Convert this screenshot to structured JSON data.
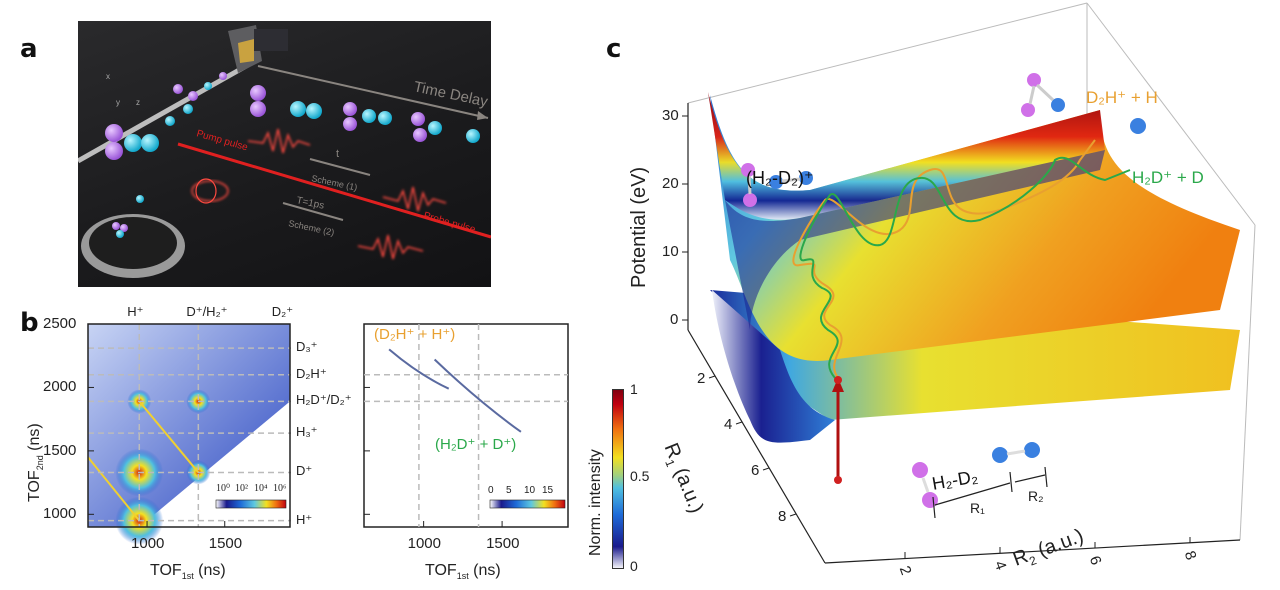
{
  "panels": {
    "a": {
      "letter": "a",
      "labels": {
        "axis_x": "x",
        "axis_y": "y",
        "axis_z": "z",
        "time_delay": "Time Delay",
        "pump_pulse": "Pump pulse",
        "probe_pulse": "Probe pulse",
        "t": "t",
        "scheme1": "Scheme (1)",
        "T": "T=1ps",
        "scheme2": "Scheme (2)"
      },
      "colors": {
        "H": "#b97ae8",
        "D": "#28c6e0",
        "laser": "#e02020",
        "arrow": "#8a8580"
      }
    },
    "b": {
      "letter": "b",
      "chart_data": [
        {
          "type": "heatmap",
          "title": "",
          "xlabel": "TOF1st (ns)",
          "xlabel_main": "TOF",
          "xlabel_sub": "1st",
          "xlabel_unit": " (ns)",
          "ylabel_main": "TOF",
          "ylabel_sub": "2nd",
          "ylabel_unit": " (ns)",
          "xlim": [
            620,
            1920
          ],
          "ylim": [
            900,
            2500
          ],
          "x_ticks": [
            1000,
            1500
          ],
          "y_ticks": [
            1000,
            1500,
            2000,
            2500
          ],
          "top_labels": [
            {
              "text": "H⁺",
              "x": 950
            },
            {
              "text": "D⁺/H₂⁺",
              "x": 1330
            },
            {
              "text": "D₂⁺",
              "x": 1880
            }
          ],
          "right_labels": [
            {
              "text": "D₃⁺",
              "y": 2310
            },
            {
              "text": "D₂H⁺",
              "y": 2100
            },
            {
              "text": "H₂D⁺/D₂⁺",
              "y": 1890
            },
            {
              "text": "H₃⁺",
              "y": 1640
            },
            {
              "text": "D⁺",
              "y": 1330
            },
            {
              "text": "H⁺",
              "y": 950
            }
          ],
          "vertical_dashes": [
            950,
            1330
          ],
          "horizontal_dashes": [
            2310,
            2100,
            1890,
            1640,
            1330,
            950
          ],
          "colorbar": {
            "scale": "log",
            "tick_labels": [
              "10⁰",
              "10²",
              "10⁴",
              "10⁶"
            ]
          }
        },
        {
          "type": "heatmap",
          "xlabel_main": "TOF",
          "xlabel_sub": "1st",
          "xlabel_unit": " (ns)",
          "xlim": [
            620,
            1920
          ],
          "ylim": [
            900,
            2500
          ],
          "x_ticks": [
            1000,
            1500
          ],
          "vertical_dashes": [
            970,
            1350
          ],
          "horizontal_dashes": [
            2100,
            1890
          ],
          "annotations": [
            {
              "text": "(D₂H⁺ + H⁺)",
              "color": "#e8a030"
            },
            {
              "text": "(H₂D⁺ + D⁺)",
              "color": "#2aa84a"
            }
          ],
          "curves": [
            {
              "name": "D2H+ + H+",
              "points": [
                [
                  780,
                  2300
                ],
                [
                  970,
                  2100
                ],
                [
                  1160,
                  1990
                ]
              ]
            },
            {
              "name": "H2D+ + D+",
              "points": [
                [
                  1070,
                  2220
                ],
                [
                  1350,
                  1890
                ],
                [
                  1620,
                  1650
                ]
              ]
            }
          ],
          "colorbar": {
            "scale": "linear",
            "tick_labels": [
              "0",
              "5",
              "10",
              "15"
            ]
          }
        }
      ],
      "shared_colorbar": {
        "label": "Norm. intensity",
        "ticks": [
          "0",
          "0.5",
          "1"
        ],
        "range": [
          0,
          1
        ]
      }
    },
    "c": {
      "letter": "c",
      "chart_data": {
        "type": "surface",
        "zlabel": "Potential (eV)",
        "xlabel_main": "R",
        "xlabel_sub": "2",
        "xlabel_unit": " (a.u.)",
        "ylabel_main": "R",
        "ylabel_sub": "1",
        "ylabel_unit": " (a.u.)",
        "z_ticks": [
          "0",
          "10",
          "20",
          "30"
        ],
        "x_ticks": [
          "2",
          "4",
          "6",
          "8"
        ],
        "y_ticks": [
          "2",
          "4",
          "6",
          "8"
        ],
        "zlim": [
          0,
          35
        ],
        "surfaces": [
          "(H₂-D₂)⁺",
          "H₂-D₂"
        ],
        "channels": [
          {
            "text": "D₂H⁺ + H",
            "color": "#e8a030"
          },
          {
            "text": "H₂D⁺ + D",
            "color": "#2aa84a"
          }
        ],
        "molecule_labels": {
          "ion": "(H₂-D₂)⁺",
          "neutral": "H₂-D₂",
          "R1": "R₁",
          "R2": "R₂"
        }
      }
    }
  }
}
